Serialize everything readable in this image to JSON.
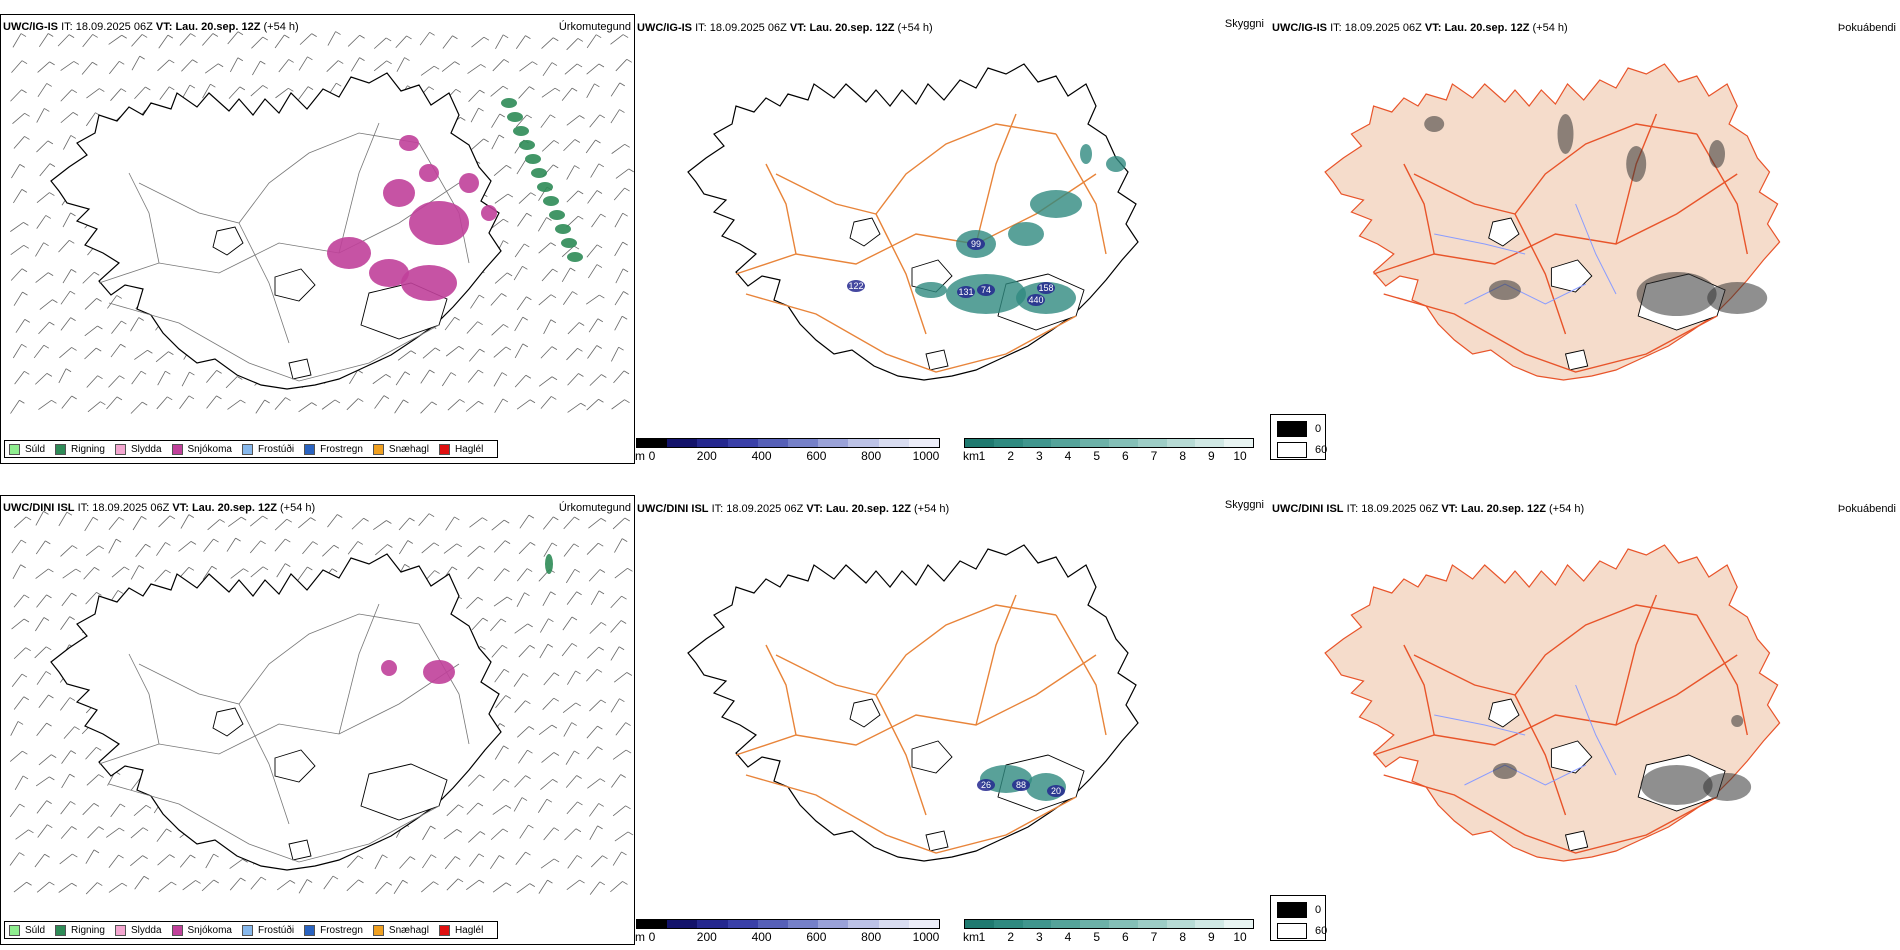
{
  "rows": [
    {
      "model": "UWC/IG-IS",
      "it_label": "IT:",
      "it_value": "18.09.2025 06Z",
      "vt_label": "VT:",
      "vt_value": "Lau. 20.sep. 12Z",
      "lead": "(+54 h)"
    },
    {
      "model": "UWC/DINI ISL",
      "it_label": "IT:",
      "it_value": "18.09.2025 06Z",
      "vt_label": "VT:",
      "vt_value": "Lau. 20.sep. 12Z",
      "lead": "(+54 h)"
    }
  ],
  "panels": {
    "precip_name": "Úrkomutegund",
    "cloud_name": "Skyggni",
    "shade_name": "Þokuábendi"
  },
  "precip_legend": [
    {
      "label": "Súld",
      "color": "#90ee90"
    },
    {
      "label": "Rigning",
      "color": "#2e8b57"
    },
    {
      "label": "Slydda",
      "color": "#f4a6d0"
    },
    {
      "label": "Snjókoma",
      "color": "#c0409a"
    },
    {
      "label": "Frostúði",
      "color": "#87b8ec"
    },
    {
      "label": "Frostregn",
      "color": "#2a63c0"
    },
    {
      "label": "Snæhagl",
      "color": "#f0a020"
    },
    {
      "label": "Haglél",
      "color": "#e01010"
    }
  ],
  "height_bar": {
    "unit": "m",
    "ticks": [
      "0",
      "200",
      "400",
      "600",
      "800",
      "1000"
    ],
    "colors": [
      "#000000",
      "#13136b",
      "#25288f",
      "#3a40a8",
      "#5660b8",
      "#7580c8",
      "#9aa2d8",
      "#bcc2e6",
      "#d8dcf0",
      "#ecedf8"
    ]
  },
  "vis_bar": {
    "unit": "km",
    "ticks": [
      "1",
      "2",
      "3",
      "4",
      "5",
      "6",
      "7",
      "8",
      "9",
      "10"
    ],
    "colors": [
      "#1f7a70",
      "#2f8a80",
      "#40968e",
      "#55a39a",
      "#6cb1a8",
      "#84bfb7",
      "#9dcdc6",
      "#b7dbd5",
      "#d0e8e4",
      "#e8f4f2"
    ]
  },
  "shade_legend": [
    {
      "label": "0",
      "color": "#000000"
    },
    {
      "label": "60",
      "color": "#ffffff"
    }
  ],
  "top_vis_labels": [
    "99",
    "122",
    "131",
    "74",
    "158",
    "440"
  ],
  "bottom_vis_labels": [
    "26",
    "88",
    "20"
  ]
}
